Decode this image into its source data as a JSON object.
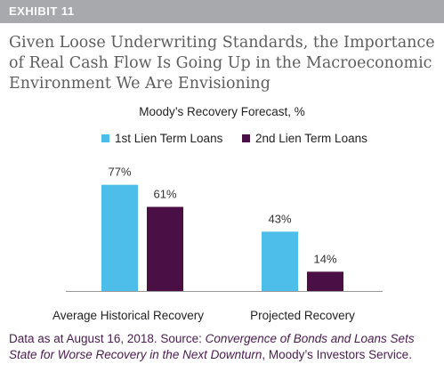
{
  "header": {
    "exhibit_label": "EXHIBIT 11"
  },
  "headline": {
    "line1": "Given Loose Underwriting Standards, the Importance",
    "line2": "of Real Cash Flow Is Going Up in the Macroeconomic",
    "line3": "Environment We Are Envisioning"
  },
  "colors": {
    "series1": "#4dbde9",
    "series2": "#4a0f45",
    "header_bg": "#a7a9ac"
  },
  "chart_data": {
    "type": "bar",
    "title": "Moody’s Recovery Forecast, %",
    "categories": [
      "Average Historical Recovery",
      "Projected Recovery"
    ],
    "series": [
      {
        "name": "1st Lien Term Loans",
        "values": [
          77,
          43
        ],
        "labels": [
          "77%",
          "43%"
        ]
      },
      {
        "name": "2nd Lien Term Loans",
        "values": [
          61,
          14
        ],
        "labels": [
          "61%",
          "14%"
        ]
      }
    ],
    "ylim": [
      0,
      100
    ],
    "xlabel": "",
    "ylabel": "",
    "grid": false,
    "legend": "top"
  },
  "source": {
    "prefix": "Data as at August 16, 2018. Source: ",
    "italic_title": "Convergence of Bonds and Loans Sets State for Worse Recovery in the Next Downturn",
    "suffix": ", Moody’s Investors Service."
  }
}
